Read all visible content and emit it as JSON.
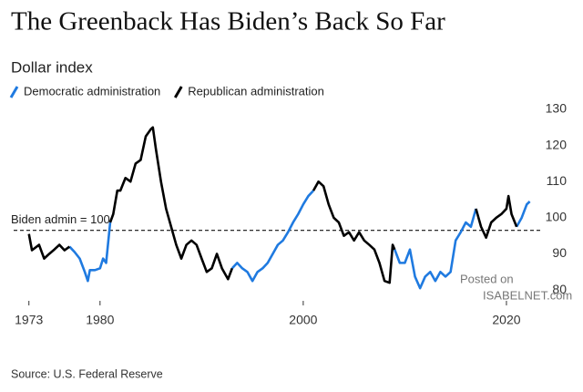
{
  "chart_data": {
    "type": "line",
    "title": "The Greenback Has Biden’s Back So Far",
    "subtitle": "Dollar index",
    "source": "Source: U.S. Federal Reserve",
    "watermark": [
      "Posted on",
      "ISABELNET.com"
    ],
    "annotation": {
      "text": "Biden admin = 100",
      "value": 96.5
    },
    "x": [
      1973,
      1973.3,
      1974,
      1974.5,
      1975,
      1975.5,
      1976,
      1976.5,
      1977,
      1977.5,
      1978,
      1978.5,
      1978.8,
      1979,
      1979.5,
      1980,
      1980.3,
      1980.6,
      1981,
      1981.3,
      1981.7,
      1982,
      1982.5,
      1983,
      1983.5,
      1984,
      1984.5,
      1985,
      1985.2,
      1985.5,
      1986,
      1986.5,
      1987,
      1987.5,
      1988,
      1988.5,
      1989,
      1989.5,
      1990,
      1990.5,
      1991,
      1991.5,
      1992,
      1992.6,
      1993,
      1993.5,
      1994,
      1994.5,
      1995,
      1995.5,
      1996,
      1996.5,
      1997,
      1997.5,
      1998,
      1998.5,
      1999,
      1999.5,
      2000,
      2000.5,
      2001,
      2001.5,
      2002,
      2002.5,
      2003,
      2003.5,
      2004,
      2004.5,
      2005,
      2005.5,
      2006,
      2006.5,
      2007,
      2007.5,
      2008,
      2008.5,
      2008.8,
      2009,
      2009.5,
      2010,
      2010.5,
      2011,
      2011.5,
      2012,
      2012.5,
      2013,
      2013.5,
      2014,
      2014.5,
      2015,
      2015.5,
      2016,
      2016.5,
      2017,
      2017.5,
      2018,
      2018.5,
      2019,
      2019.5,
      2020,
      2020.2,
      2020.5,
      2021,
      2021.5,
      2022,
      2022.3
    ],
    "series": [
      {
        "name": "Democratic administration",
        "color": "#1f7ae0",
        "values": [
          null,
          null,
          null,
          null,
          null,
          null,
          null,
          null,
          92,
          90.5,
          88.7,
          85,
          82.5,
          85.5,
          85.5,
          86,
          88.7,
          87.5,
          98.7,
          null,
          null,
          null,
          null,
          null,
          null,
          null,
          null,
          null,
          null,
          null,
          null,
          null,
          null,
          null,
          null,
          null,
          null,
          null,
          null,
          null,
          null,
          null,
          null,
          null,
          86,
          87.5,
          86,
          85,
          82.5,
          85,
          86,
          87.5,
          90,
          92.5,
          93.7,
          96,
          98.7,
          101,
          103.7,
          106,
          107.5,
          null,
          null,
          null,
          null,
          null,
          null,
          null,
          null,
          null,
          null,
          null,
          null,
          null,
          null,
          null,
          null,
          91.2,
          87.5,
          87.5,
          91.2,
          83.7,
          80.5,
          83.7,
          85,
          82.5,
          85,
          83.7,
          85,
          93.7,
          96,
          98.7,
          97.5,
          102.5,
          null,
          null,
          null,
          null,
          null,
          null,
          null,
          null,
          97.5,
          100,
          103.7,
          104.5
        ]
      },
      {
        "name": "Republican administration",
        "color": "#000000",
        "values": [
          95.5,
          91,
          92.5,
          88.7,
          90,
          91.2,
          92.5,
          91,
          92,
          null,
          null,
          null,
          null,
          null,
          null,
          null,
          null,
          null,
          98.7,
          101,
          107.5,
          107.5,
          111,
          110,
          115,
          116,
          122.5,
          124.5,
          125,
          119,
          110,
          102.5,
          97.5,
          92.5,
          88.7,
          92.5,
          93.7,
          92.5,
          88.7,
          85,
          86,
          90,
          86,
          83,
          86,
          null,
          null,
          null,
          null,
          null,
          null,
          null,
          null,
          null,
          null,
          null,
          null,
          null,
          null,
          null,
          107.5,
          110,
          108.7,
          103.7,
          100,
          98.7,
          95,
          96,
          93.7,
          96,
          93.7,
          92.5,
          91.2,
          87.5,
          82.5,
          82,
          92.5,
          91.2,
          null,
          null,
          null,
          null,
          null,
          null,
          null,
          null,
          null,
          null,
          null,
          null,
          null,
          null,
          null,
          102.5,
          97.5,
          94.5,
          98.7,
          100,
          101,
          102.5,
          106,
          101,
          97.5,
          null,
          null,
          null
        ]
      }
    ],
    "xlim": [
      1971.5,
      2023.5
    ],
    "xticks": [
      1973,
      1980,
      2000,
      2020
    ],
    "ylim": [
      77,
      132
    ],
    "yticks": [
      80,
      90,
      100,
      110,
      120,
      130
    ],
    "y_axis_side": "right"
  }
}
